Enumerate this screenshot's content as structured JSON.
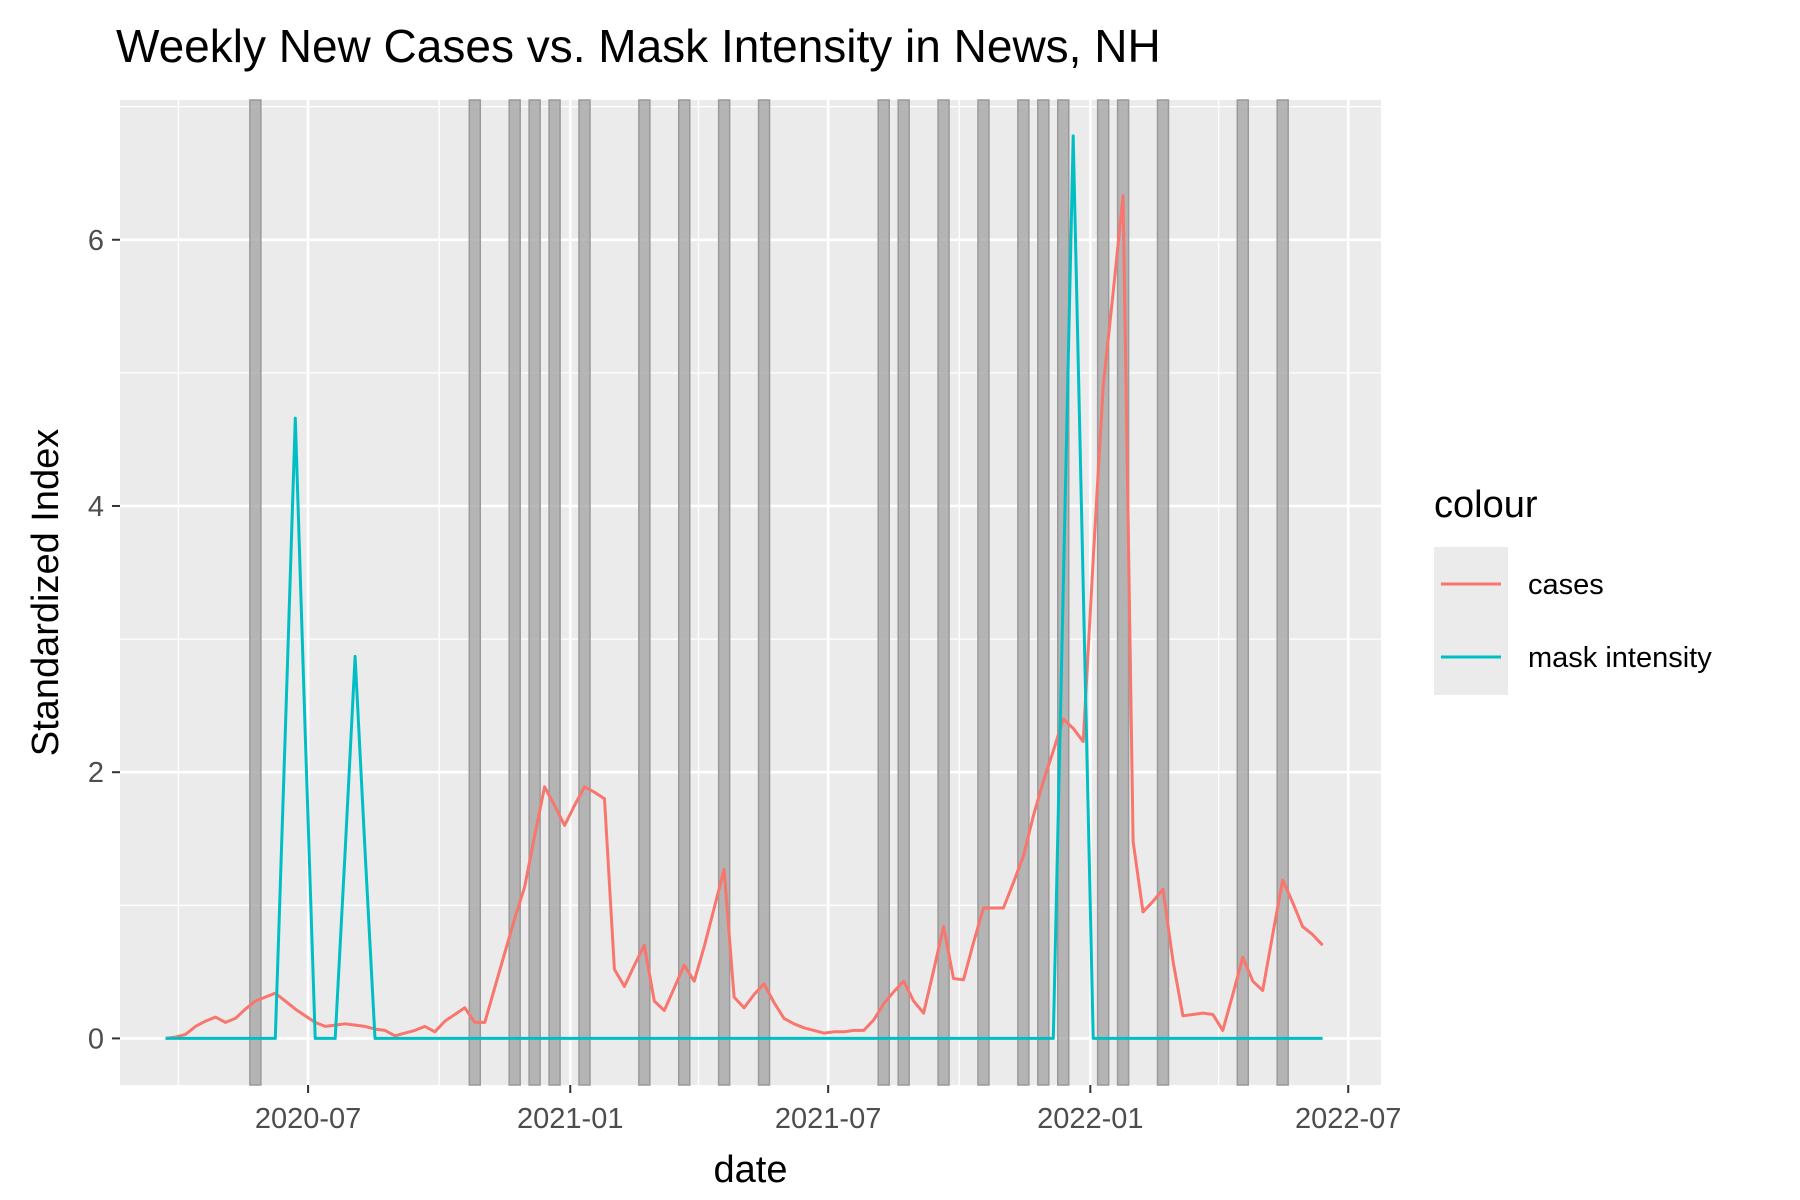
{
  "chart_data": {
    "type": "line",
    "title": "Weekly New Cases vs. Mask Intensity in News, NH",
    "xlabel": "date",
    "ylabel": "Standardized Index",
    "x_ticks": [
      "2020-07",
      "2021-01",
      "2021-07",
      "2022-01",
      "2022-07"
    ],
    "y_ticks": [
      0,
      2,
      4,
      6
    ],
    "xlim": [
      "2020-02-20",
      "2022-07-24"
    ],
    "ylim": [
      -0.35,
      7.05
    ],
    "grid": true,
    "legend": {
      "title": "colour",
      "position": "right",
      "entries": [
        "cases",
        "mask intensity"
      ]
    },
    "highlight_dates": [
      "2020-05-25",
      "2020-10-26",
      "2020-11-23",
      "2020-12-07",
      "2020-12-21",
      "2021-01-11",
      "2021-02-22",
      "2021-03-22",
      "2021-04-19",
      "2021-05-17",
      "2021-08-09",
      "2021-08-23",
      "2021-09-20",
      "2021-10-18",
      "2021-11-15",
      "2021-11-29",
      "2021-12-13",
      "2022-01-10",
      "2022-01-24",
      "2022-02-21",
      "2022-04-18",
      "2022-05-16"
    ],
    "highlight_color": "#a6a6a6",
    "series": [
      {
        "name": "cases",
        "color": "#F8766D",
        "points": [
          [
            "2020-03-23",
            0.0
          ],
          [
            "2020-03-30",
            0.01
          ],
          [
            "2020-04-06",
            0.03
          ],
          [
            "2020-04-13",
            0.09
          ],
          [
            "2020-04-20",
            0.13
          ],
          [
            "2020-04-27",
            0.16
          ],
          [
            "2020-05-04",
            0.12
          ],
          [
            "2020-05-11",
            0.15
          ],
          [
            "2020-05-18",
            0.22
          ],
          [
            "2020-05-25",
            0.28
          ],
          [
            "2020-06-01",
            0.31
          ],
          [
            "2020-06-08",
            0.34
          ],
          [
            "2020-06-15",
            0.28
          ],
          [
            "2020-06-22",
            0.22
          ],
          [
            "2020-06-29",
            0.17
          ],
          [
            "2020-07-06",
            0.12
          ],
          [
            "2020-07-13",
            0.09
          ],
          [
            "2020-07-20",
            0.1
          ],
          [
            "2020-07-27",
            0.11
          ],
          [
            "2020-08-03",
            0.1
          ],
          [
            "2020-08-10",
            0.09
          ],
          [
            "2020-08-17",
            0.07
          ],
          [
            "2020-08-24",
            0.06
          ],
          [
            "2020-08-31",
            0.02
          ],
          [
            "2020-09-07",
            0.04
          ],
          [
            "2020-09-14",
            0.06
          ],
          [
            "2020-09-21",
            0.09
          ],
          [
            "2020-09-28",
            0.05
          ],
          [
            "2020-10-05",
            0.13
          ],
          [
            "2020-10-12",
            0.18
          ],
          [
            "2020-10-19",
            0.23
          ],
          [
            "2020-10-26",
            0.12
          ],
          [
            "2020-11-02",
            0.12
          ],
          [
            "2020-11-09",
            0.38
          ],
          [
            "2020-11-16",
            0.64
          ],
          [
            "2020-11-23",
            0.9
          ],
          [
            "2020-11-30",
            1.14
          ],
          [
            "2020-12-07",
            1.52
          ],
          [
            "2020-12-14",
            1.89
          ],
          [
            "2020-12-21",
            1.75
          ],
          [
            "2020-12-28",
            1.6
          ],
          [
            "2021-01-04",
            1.75
          ],
          [
            "2021-01-11",
            1.89
          ],
          [
            "2021-01-18",
            1.85
          ],
          [
            "2021-01-25",
            1.8
          ],
          [
            "2021-02-01",
            0.52
          ],
          [
            "2021-02-08",
            0.39
          ],
          [
            "2021-02-15",
            0.55
          ],
          [
            "2021-02-22",
            0.7
          ],
          [
            "2021-03-01",
            0.28
          ],
          [
            "2021-03-08",
            0.21
          ],
          [
            "2021-03-15",
            0.38
          ],
          [
            "2021-03-22",
            0.55
          ],
          [
            "2021-03-29",
            0.43
          ],
          [
            "2021-04-05",
            0.69
          ],
          [
            "2021-04-12",
            0.98
          ],
          [
            "2021-04-19",
            1.27
          ],
          [
            "2021-04-26",
            0.31
          ],
          [
            "2021-05-03",
            0.23
          ],
          [
            "2021-05-10",
            0.33
          ],
          [
            "2021-05-17",
            0.41
          ],
          [
            "2021-05-24",
            0.27
          ],
          [
            "2021-05-31",
            0.15
          ],
          [
            "2021-06-07",
            0.11
          ],
          [
            "2021-06-14",
            0.08
          ],
          [
            "2021-06-21",
            0.06
          ],
          [
            "2021-06-28",
            0.04
          ],
          [
            "2021-07-05",
            0.05
          ],
          [
            "2021-07-12",
            0.05
          ],
          [
            "2021-07-19",
            0.06
          ],
          [
            "2021-07-26",
            0.06
          ],
          [
            "2021-08-02",
            0.14
          ],
          [
            "2021-08-09",
            0.26
          ],
          [
            "2021-08-16",
            0.35
          ],
          [
            "2021-08-23",
            0.43
          ],
          [
            "2021-08-30",
            0.28
          ],
          [
            "2021-09-06",
            0.19
          ],
          [
            "2021-09-13",
            0.51
          ],
          [
            "2021-09-20",
            0.84
          ],
          [
            "2021-09-27",
            0.45
          ],
          [
            "2021-10-04",
            0.44
          ],
          [
            "2021-10-11",
            0.72
          ],
          [
            "2021-10-18",
            0.98
          ],
          [
            "2021-10-25",
            0.98
          ],
          [
            "2021-11-01",
            0.98
          ],
          [
            "2021-11-08",
            1.17
          ],
          [
            "2021-11-15",
            1.37
          ],
          [
            "2021-11-22",
            1.67
          ],
          [
            "2021-11-29",
            1.93
          ],
          [
            "2021-12-06",
            2.16
          ],
          [
            "2021-12-13",
            2.4
          ],
          [
            "2021-12-20",
            2.33
          ],
          [
            "2021-12-27",
            2.23
          ],
          [
            "2022-01-03",
            3.6
          ],
          [
            "2022-01-10",
            4.9
          ],
          [
            "2022-01-17",
            5.6
          ],
          [
            "2022-01-24",
            6.33
          ],
          [
            "2022-01-31",
            1.48
          ],
          [
            "2022-02-07",
            0.95
          ],
          [
            "2022-02-14",
            1.03
          ],
          [
            "2022-02-21",
            1.12
          ],
          [
            "2022-02-28",
            0.58
          ],
          [
            "2022-03-07",
            0.17
          ],
          [
            "2022-03-14",
            0.18
          ],
          [
            "2022-03-21",
            0.19
          ],
          [
            "2022-03-28",
            0.18
          ],
          [
            "2022-04-04",
            0.06
          ],
          [
            "2022-04-11",
            0.33
          ],
          [
            "2022-04-18",
            0.61
          ],
          [
            "2022-04-25",
            0.43
          ],
          [
            "2022-05-02",
            0.36
          ],
          [
            "2022-05-09",
            0.78
          ],
          [
            "2022-05-16",
            1.19
          ],
          [
            "2022-05-23",
            1.02
          ],
          [
            "2022-05-30",
            0.84
          ],
          [
            "2022-06-06",
            0.78
          ],
          [
            "2022-06-13",
            0.7
          ]
        ]
      },
      {
        "name": "mask intensity",
        "color": "#00BFC4",
        "points": [
          [
            "2020-03-23",
            0.0
          ],
          [
            "2020-05-25",
            0.0
          ],
          [
            "2020-06-01",
            0.0
          ],
          [
            "2020-06-08",
            0.0
          ],
          [
            "2020-06-15",
            2.3
          ],
          [
            "2020-06-22",
            4.66
          ],
          [
            "2020-06-29",
            2.3
          ],
          [
            "2020-07-06",
            0.0
          ],
          [
            "2020-07-13",
            0.0
          ],
          [
            "2020-07-20",
            0.0
          ],
          [
            "2020-07-27",
            1.4
          ],
          [
            "2020-08-03",
            2.87
          ],
          [
            "2020-08-10",
            1.4
          ],
          [
            "2020-08-17",
            0.0
          ],
          [
            "2021-12-06",
            0.0
          ],
          [
            "2021-12-13",
            3.4
          ],
          [
            "2021-12-20",
            6.78
          ],
          [
            "2021-12-27",
            3.4
          ],
          [
            "2022-01-03",
            0.0
          ],
          [
            "2022-06-13",
            0.0
          ]
        ]
      }
    ]
  }
}
